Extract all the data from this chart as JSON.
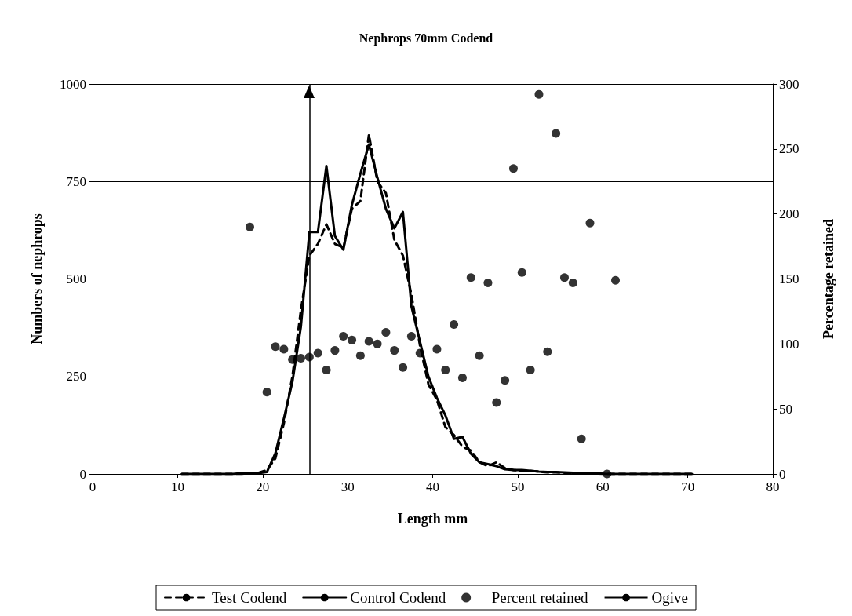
{
  "chart_data": {
    "type": "line",
    "title": "Nephrops 70mm Codend",
    "xlabel": "Length mm",
    "ylabel": "Numbers of nephrops",
    "y2label": "Percentage retained",
    "xlim": [
      0,
      80
    ],
    "xticks": [
      0,
      10,
      20,
      30,
      40,
      50,
      60,
      70,
      80
    ],
    "ylim": [
      0,
      1000
    ],
    "yticks": [
      0,
      250,
      500,
      750,
      1000
    ],
    "y2lim": [
      0,
      300
    ],
    "y2ticks": [
      0,
      50,
      100,
      150,
      200,
      250,
      300
    ],
    "grid": "y",
    "legend": "bottom",
    "ref_lines": [
      {
        "axis": "x",
        "value": 25.5,
        "label": "Ogive",
        "color": "#000000",
        "line_style": "solid"
      }
    ],
    "x": [
      10.5,
      11.5,
      12.5,
      13.5,
      14.5,
      15.5,
      16.5,
      17.5,
      18.5,
      19.5,
      20.5,
      21.5,
      22.5,
      23.5,
      24.5,
      25.5,
      26.5,
      27.5,
      28.5,
      29.5,
      30.5,
      31.5,
      32.5,
      33.5,
      34.5,
      35.5,
      36.5,
      37.5,
      38.5,
      39.5,
      40.5,
      41.5,
      42.5,
      43.5,
      44.5,
      45.5,
      46.5,
      47.5,
      48.5,
      49.5,
      50.5,
      51.5,
      52.5,
      53.5,
      54.5,
      55.5,
      56.5,
      57.5,
      58.5,
      59.5,
      60.5,
      61.5,
      62.5,
      63.5,
      64.5,
      65.5,
      66.5,
      67.5,
      68.5,
      69.5,
      70.5
    ],
    "series": [
      {
        "name": "Test Codend",
        "color": "#000000",
        "line_style": "dashed",
        "marker": "none",
        "values": [
          0,
          0,
          0,
          0,
          0,
          0,
          0,
          0,
          2,
          3,
          10,
          40,
          130,
          250,
          420,
          560,
          590,
          640,
          590,
          580,
          680,
          700,
          870,
          750,
          720,
          600,
          560,
          460,
          330,
          230,
          190,
          120,
          100,
          70,
          60,
          30,
          20,
          30,
          15,
          10,
          8,
          8,
          6,
          4,
          4,
          3,
          2,
          2,
          1,
          1,
          0,
          0,
          0,
          0,
          0,
          0,
          0,
          0,
          0,
          0,
          0
        ]
      },
      {
        "name": "Control Codend",
        "color": "#000000",
        "line_style": "solid",
        "marker": "none",
        "values": [
          0,
          0,
          0,
          0,
          0,
          0,
          0,
          2,
          3,
          2,
          5,
          53,
          142,
          236,
          377,
          620,
          620,
          790,
          610,
          575,
          690,
          770,
          845,
          760,
          680,
          630,
          672,
          430,
          340,
          250,
          195,
          150,
          90,
          95,
          52,
          30,
          25,
          20,
          12,
          10,
          10,
          8,
          6,
          5,
          5,
          4,
          3,
          2,
          1,
          1,
          0,
          0,
          0,
          0,
          0,
          0,
          0,
          0,
          0,
          0,
          0
        ]
      },
      {
        "name": "Percent retained",
        "type": "scatter",
        "axis": "y2",
        "color": "#000000",
        "marker": "circle",
        "x": [
          18.5,
          20.5,
          21.5,
          22.5,
          23.5,
          24.5,
          25.5,
          26.5,
          27.5,
          28.5,
          29.5,
          30.5,
          31.5,
          32.5,
          33.5,
          34.5,
          35.5,
          36.5,
          37.5,
          38.5,
          40.5,
          41.5,
          42.5,
          43.5,
          44.5,
          45.5,
          46.5,
          47.5,
          48.5,
          49.5,
          50.5,
          51.5,
          52.5,
          53.5,
          54.5,
          55.5,
          56.5,
          57.5,
          58.5,
          60.5,
          61.5
        ],
        "values": [
          190,
          63,
          98,
          96,
          88,
          89,
          90,
          93,
          80,
          95,
          106,
          103,
          91,
          102,
          100,
          109,
          95,
          82,
          106,
          93,
          96,
          80,
          115,
          74,
          151,
          91,
          147,
          55,
          72,
          235,
          155,
          80,
          292,
          94,
          262,
          151,
          147,
          27,
          193,
          0,
          149
        ]
      }
    ]
  }
}
